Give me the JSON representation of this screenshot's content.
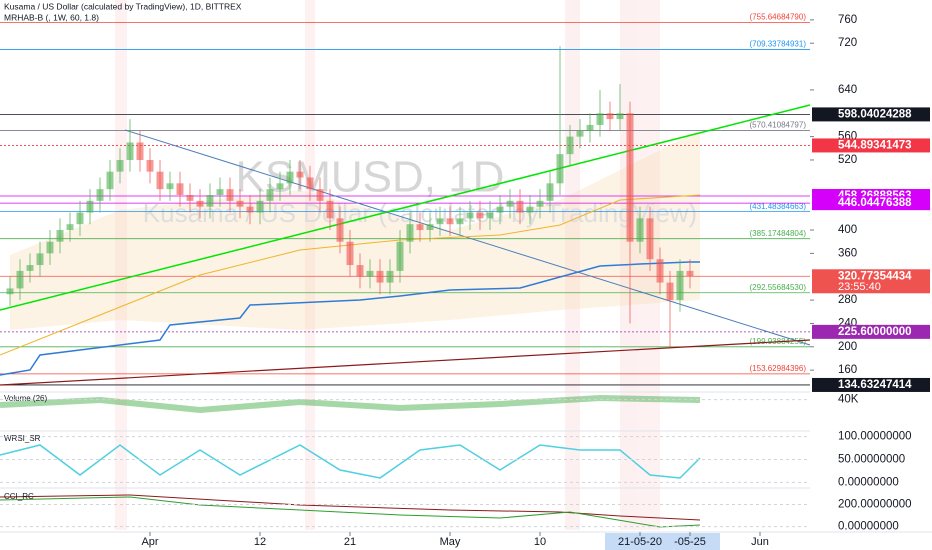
{
  "chart_data": {
    "type": "candlestick",
    "title": "Kusama / US Dollar (calculated by TradingView), 1D, BITTREX",
    "subtitle": "MRHAB-B (, 1W, 60, 1.8)",
    "watermark": "KSMUSD, 1D",
    "watermark_sub": "Kusama / US Dollar (calculated by TradingView)",
    "up_color": "#4caf50",
    "down_color": "#ef5350",
    "categories": [
      null,
      null,
      null,
      null,
      null,
      null,
      null,
      null,
      null,
      null,
      null,
      null,
      null,
      null,
      null,
      null,
      null,
      null,
      null,
      null,
      null,
      null,
      null,
      null,
      null,
      null,
      null,
      null,
      null,
      null,
      null,
      null,
      null,
      null,
      null,
      null,
      null,
      null,
      null,
      null,
      null,
      null,
      null,
      null,
      null,
      null,
      null,
      null,
      null,
      null,
      null,
      null,
      null,
      null,
      null,
      null,
      null,
      null,
      null,
      null,
      null,
      null,
      null,
      null,
      null,
      null,
      null,
      null,
      null
    ],
    "open": [
      290,
      300,
      330,
      340,
      360,
      380,
      400,
      410,
      430,
      450,
      470,
      500,
      520,
      550,
      520,
      500,
      470,
      480,
      460,
      450,
      440,
      460,
      470,
      450,
      440,
      430,
      450,
      470,
      480,
      500,
      490,
      470,
      450,
      420,
      380,
      340,
      320,
      330,
      310,
      330,
      380,
      410,
      400,
      410,
      420,
      410,
      420,
      430,
      420,
      430,
      440,
      450,
      430,
      440,
      450,
      480,
      530,
      560,
      570,
      580,
      600,
      590,
      600,
      380,
      420,
      350,
      310,
      280,
      330
    ],
    "high": [
      320,
      350,
      360,
      380,
      400,
      420,
      430,
      450,
      470,
      490,
      520,
      540,
      590,
      570,
      540,
      520,
      500,
      500,
      480,
      470,
      480,
      490,
      490,
      470,
      460,
      470,
      490,
      500,
      520,
      520,
      510,
      490,
      470,
      440,
      400,
      360,
      350,
      350,
      350,
      400,
      430,
      430,
      430,
      440,
      440,
      440,
      450,
      450,
      450,
      460,
      470,
      470,
      460,
      470,
      500,
      715,
      580,
      590,
      600,
      640,
      620,
      650,
      620,
      440,
      440,
      370,
      330,
      350,
      350
    ],
    "low": [
      270,
      280,
      310,
      320,
      340,
      360,
      380,
      390,
      410,
      430,
      450,
      480,
      500,
      500,
      480,
      450,
      450,
      440,
      430,
      420,
      420,
      440,
      430,
      420,
      410,
      410,
      430,
      450,
      460,
      470,
      450,
      430,
      400,
      360,
      320,
      300,
      300,
      290,
      290,
      310,
      360,
      380,
      380,
      390,
      390,
      390,
      400,
      400,
      400,
      410,
      420,
      410,
      410,
      420,
      430,
      460,
      510,
      540,
      550,
      560,
      570,
      570,
      240,
      360,
      330,
      290,
      200,
      260,
      300
    ],
    "close": [
      300,
      330,
      340,
      360,
      380,
      400,
      410,
      430,
      450,
      470,
      500,
      520,
      550,
      520,
      500,
      470,
      480,
      460,
      450,
      440,
      460,
      470,
      450,
      440,
      430,
      450,
      470,
      480,
      500,
      490,
      470,
      450,
      420,
      380,
      340,
      320,
      330,
      310,
      330,
      380,
      410,
      400,
      410,
      420,
      410,
      420,
      430,
      420,
      430,
      440,
      450,
      430,
      440,
      450,
      480,
      530,
      560,
      570,
      580,
      600,
      590,
      600,
      380,
      420,
      350,
      310,
      280,
      330,
      320.77354434
    ],
    "ylim": [
      126,
      794
    ],
    "yticks": [
      760,
      720,
      640,
      560,
      520,
      400,
      360,
      280,
      240,
      200,
      160
    ],
    "xticks": [
      {
        "value": 14,
        "label": "Apr"
      },
      {
        "value": 25,
        "label": "12"
      },
      {
        "value": 34,
        "label": "21"
      },
      {
        "value": 44,
        "label": "May"
      },
      {
        "value": 53,
        "label": "10"
      },
      {
        "value": 63,
        "label": "21-05-20"
      },
      {
        "value": 68,
        "label": "-05-25"
      },
      {
        "value": 75,
        "label": "Jun"
      }
    ],
    "price_markers": [
      598.04024288,
      544.89341473,
      458.26888563,
      446.04476388,
      320.77354434,
      225.6,
      134.63247414
    ],
    "price_marker_labels": [
      "598.04024288",
      "544.89341473",
      "458.26888563",
      "446.04476388",
      "320.77354434",
      "225.60000000",
      "134.63247414"
    ],
    "price_marker_colors": [
      "#131722",
      "#f23645",
      "#d500f9",
      "#d500f9",
      "#ef5350",
      "#9c27b0",
      "#131722"
    ],
    "countdown": "23:55:40",
    "levels": [
      {
        "value": 755.6468479,
        "label": "(755.64684790)"
      },
      {
        "value": 709.33784931,
        "label": "(709.33784931)"
      },
      {
        "value": 570.41084797,
        "label": "(570.41084797)"
      },
      {
        "value": 431.48384663,
        "label": "(431.48384663)"
      },
      {
        "value": 385.17484804,
        "label": "(385.17484804)"
      },
      {
        "value": 292.5568453,
        "label": "(292.55684530)"
      },
      {
        "value": 199.93884255,
        "label": "(199.93884255)"
      },
      {
        "value": 153.62984396,
        "label": "(153.62984396)"
      }
    ],
    "level_colors": [
      "#f44336",
      "#2196f3",
      "#787b86",
      "#2196f3",
      "#4caf50",
      "#4caf50",
      "#4caf50",
      "#f44336"
    ],
    "panels": [
      {
        "title": "Volume (26)",
        "ylim": [
          0,
          50000
        ],
        "yticks": [
          {
            "value": 40000,
            "label": "40K"
          }
        ]
      },
      {
        "title": "WRSI_SR",
        "ylim": [
          -10,
          110
        ],
        "yticks": [
          {
            "value": 100,
            "label": "100.00000000"
          },
          {
            "value": 50,
            "label": "50.00000000"
          },
          {
            "value": 0,
            "label": "0.00000000"
          }
        ]
      },
      {
        "title": "CCI_RC",
        "ylim": [
          -30,
          330
        ],
        "yticks": [
          {
            "value": 200,
            "label": "200.00000000"
          },
          {
            "value": 0,
            "label": "0.00000000"
          }
        ]
      }
    ]
  }
}
